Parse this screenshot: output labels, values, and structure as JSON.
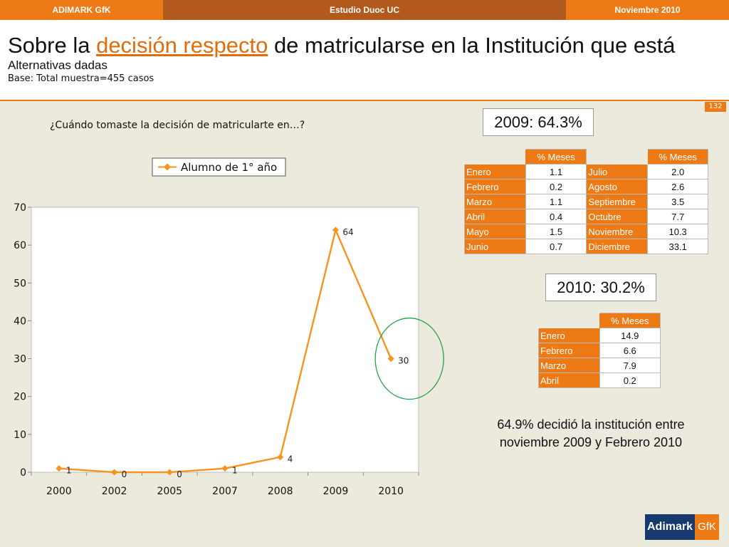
{
  "topbar": {
    "left": "ADIMARK GfK",
    "center": "Estudio Duoc UC",
    "right": "Noviembre 2010"
  },
  "header": {
    "title_pre": "Sobre la ",
    "title_hl": "decisión respecto",
    "title_post": " de matricularse en la Institución que está",
    "subtitle": "Alternativas dadas",
    "base": "Base: Total muestra=455 casos"
  },
  "page_number": "132",
  "question": "¿Cuándo tomaste la decisión de matricularte en…?",
  "chart_data": {
    "type": "line",
    "categories": [
      "2000",
      "2002",
      "2005",
      "2007",
      "2008",
      "2009",
      "2010"
    ],
    "series": [
      {
        "name": "Alumno de 1° año",
        "values": [
          1,
          0,
          0,
          1,
          4,
          64,
          30
        ],
        "labels": [
          "1",
          "0",
          "0",
          "1",
          "4",
          "64",
          "30"
        ]
      }
    ],
    "ylim": [
      0,
      70
    ],
    "yticks": [
      "0",
      "10",
      "20",
      "30",
      "40",
      "50",
      "60",
      "70"
    ],
    "legend_position": "top",
    "line_color": "#f7941d",
    "highlight": {
      "category": "2010",
      "color": "#21a34a"
    }
  },
  "box2009": {
    "label": "2009: 64.3%"
  },
  "table2009": {
    "header": "% Meses",
    "rows": [
      {
        "m1": "Enero",
        "v1": "1.1",
        "m2": "Julio",
        "v2": "2.0"
      },
      {
        "m1": "Febrero",
        "v1": "0.2",
        "m2": "Agosto",
        "v2": "2.6"
      },
      {
        "m1": "Marzo",
        "v1": "1.1",
        "m2": "Septiembre",
        "v2": "3.5"
      },
      {
        "m1": "Abril",
        "v1": "0.4",
        "m2": "Octubre",
        "v2": "7.7"
      },
      {
        "m1": "Mayo",
        "v1": "1.5",
        "m2": "Noviembre",
        "v2": "10.3"
      },
      {
        "m1": "Junio",
        "v1": "0.7",
        "m2": "Diciembre",
        "v2": "33.1"
      }
    ]
  },
  "box2010": {
    "label": "2010: 30.2%"
  },
  "table2010": {
    "header": "% Meses",
    "rows": [
      {
        "m": "Enero",
        "v": "14.9"
      },
      {
        "m": "Febrero",
        "v": "6.6"
      },
      {
        "m": "Marzo",
        "v": "7.9"
      },
      {
        "m": "Abril",
        "v": "0.2"
      }
    ]
  },
  "note": "64.9% decidió la institución entre noviembre 2009 y Febrero 2010",
  "logo": {
    "left": "Adimark",
    "right": "GfK"
  }
}
